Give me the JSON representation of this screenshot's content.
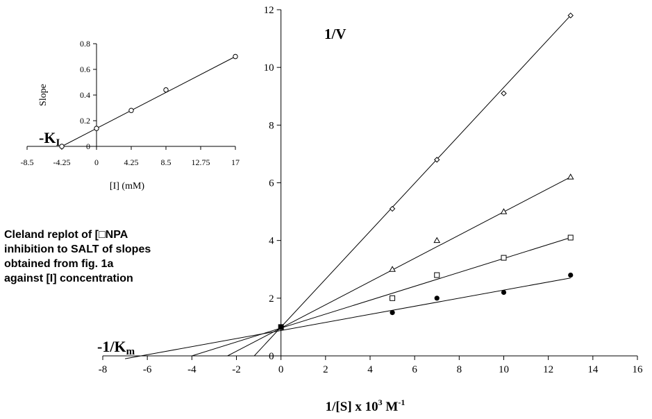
{
  "caption": "Cleland replot of [□NPA\ninhibition to SALT of slopes\nobtained from fig. 1a\nagainst [I] concentration",
  "chart_data": [
    {
      "id": "main",
      "type": "line",
      "xlabel_prefix": "1/[S] x 10",
      "xlabel_sup1": "3",
      "xlabel_mid": " M",
      "xlabel_sup2": "-1",
      "ylabel": "1/V",
      "annotation_main": "-1/K",
      "annotation_sub": "m",
      "xlim": [
        -8,
        16
      ],
      "ylim": [
        0,
        12
      ],
      "x_ticks": [
        "-8",
        "-6",
        "-4",
        "-2",
        "0",
        "2",
        "4",
        "6",
        "8",
        "10",
        "12",
        "14",
        "16"
      ],
      "y_ticks": [
        "0",
        "2",
        "4",
        "6",
        "8",
        "10",
        "12"
      ],
      "grid": false,
      "intercept_point": [
        0,
        1
      ],
      "series": [
        {
          "marker": "diamond",
          "x": [
            5,
            7,
            10,
            13
          ],
          "y": [
            5.1,
            6.8,
            9.1,
            11.8
          ],
          "line": {
            "x": [
              -1.2,
              13
            ],
            "y": [
              0,
              11.8
            ]
          }
        },
        {
          "marker": "triangle",
          "x": [
            5,
            7,
            10,
            13
          ],
          "y": [
            3.0,
            4.0,
            5.0,
            6.2
          ],
          "line": {
            "x": [
              -2.4,
              13
            ],
            "y": [
              0,
              6.2
            ]
          }
        },
        {
          "marker": "square",
          "x": [
            5,
            7,
            10,
            13
          ],
          "y": [
            2.0,
            2.8,
            3.4,
            4.1
          ],
          "line": {
            "x": [
              -4.0,
              13
            ],
            "y": [
              0,
              4.1
            ]
          }
        },
        {
          "marker": "filled-circle",
          "x": [
            5,
            7,
            10,
            13
          ],
          "y": [
            1.5,
            2.0,
            2.2,
            2.8
          ],
          "line": {
            "x": [
              -7.0,
              13
            ],
            "y": [
              -0.1,
              2.7
            ]
          }
        }
      ]
    },
    {
      "id": "inset",
      "type": "line",
      "xlabel": "[I] (mM)",
      "ylabel": "Slope",
      "annotation_main": "-K",
      "annotation_sub": "I",
      "xlim": [
        -8.5,
        17
      ],
      "ylim": [
        0,
        0.8
      ],
      "x_ticks": [
        "-8.5",
        "-4.25",
        "0",
        "4.25",
        "8.5",
        "12.75",
        "17"
      ],
      "y_ticks": [
        "0",
        "0.2",
        "0.4",
        "0.6",
        "0.8"
      ],
      "grid": false,
      "series": [
        {
          "marker": "open-circle",
          "x": [
            -4.25,
            0,
            4.25,
            8.5,
            17
          ],
          "y": [
            0.0,
            0.14,
            0.28,
            0.44,
            0.7
          ],
          "line": {
            "x": [
              -4.25,
              17
            ],
            "y": [
              0,
              0.7
            ]
          }
        }
      ]
    }
  ]
}
